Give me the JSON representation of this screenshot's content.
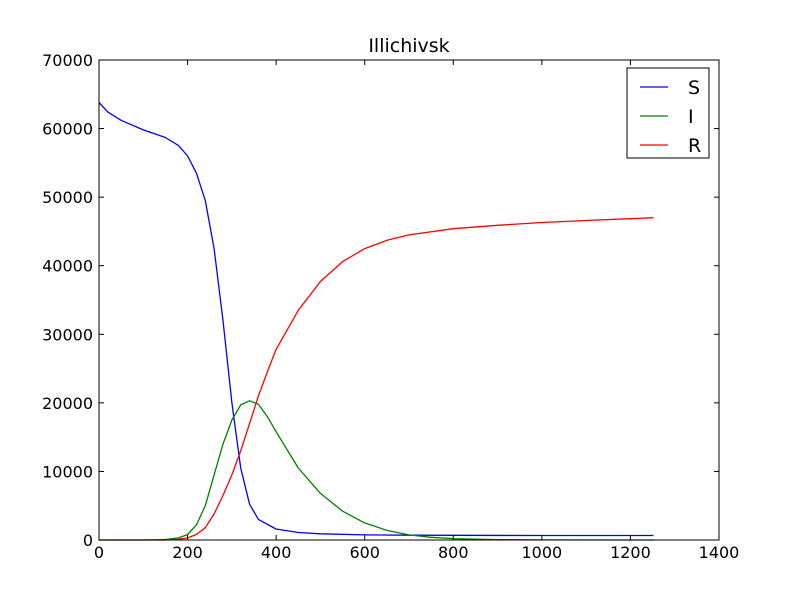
{
  "chart_data": {
    "type": "line",
    "title": "Illichivsk",
    "xlabel": "",
    "ylabel": "",
    "xlim": [
      0,
      1400
    ],
    "ylim": [
      0,
      70000
    ],
    "grid": false,
    "legend_position": "top-right",
    "xticks": [
      0,
      200,
      400,
      600,
      800,
      1000,
      1200,
      1400
    ],
    "yticks": [
      0,
      10000,
      20000,
      30000,
      40000,
      50000,
      60000,
      70000
    ],
    "series": [
      {
        "name": "S",
        "color": "#0000ff",
        "points": [
          [
            0,
            63800
          ],
          [
            20,
            62400
          ],
          [
            50,
            61200
          ],
          [
            100,
            59800
          ],
          [
            150,
            58700
          ],
          [
            180,
            57500
          ],
          [
            200,
            56000
          ],
          [
            220,
            53500
          ],
          [
            240,
            49500
          ],
          [
            260,
            42500
          ],
          [
            280,
            32000
          ],
          [
            300,
            20000
          ],
          [
            320,
            10500
          ],
          [
            340,
            5200
          ],
          [
            360,
            3000
          ],
          [
            400,
            1600
          ],
          [
            450,
            1100
          ],
          [
            500,
            900
          ],
          [
            600,
            750
          ],
          [
            700,
            700
          ],
          [
            800,
            680
          ],
          [
            1000,
            660
          ],
          [
            1252,
            650
          ]
        ]
      },
      {
        "name": "I",
        "color": "#008000",
        "points": [
          [
            0,
            0
          ],
          [
            100,
            0
          ],
          [
            150,
            80
          ],
          [
            180,
            300
          ],
          [
            200,
            800
          ],
          [
            220,
            2200
          ],
          [
            240,
            5000
          ],
          [
            260,
            9500
          ],
          [
            280,
            14000
          ],
          [
            300,
            17500
          ],
          [
            320,
            19700
          ],
          [
            340,
            20300
          ],
          [
            360,
            19800
          ],
          [
            380,
            18000
          ],
          [
            400,
            15800
          ],
          [
            450,
            10500
          ],
          [
            500,
            6800
          ],
          [
            550,
            4200
          ],
          [
            600,
            2500
          ],
          [
            650,
            1400
          ],
          [
            700,
            750
          ],
          [
            750,
            400
          ],
          [
            800,
            200
          ],
          [
            900,
            60
          ],
          [
            1000,
            15
          ],
          [
            1252,
            0
          ]
        ]
      },
      {
        "name": "R",
        "color": "#ff0000",
        "points": [
          [
            0,
            0
          ],
          [
            150,
            0
          ],
          [
            180,
            100
          ],
          [
            200,
            300
          ],
          [
            220,
            800
          ],
          [
            240,
            1800
          ],
          [
            260,
            3800
          ],
          [
            280,
            6500
          ],
          [
            300,
            9500
          ],
          [
            320,
            13000
          ],
          [
            340,
            17000
          ],
          [
            360,
            21000
          ],
          [
            380,
            24500
          ],
          [
            400,
            27800
          ],
          [
            450,
            33500
          ],
          [
            500,
            37700
          ],
          [
            550,
            40600
          ],
          [
            600,
            42500
          ],
          [
            650,
            43700
          ],
          [
            700,
            44500
          ],
          [
            800,
            45400
          ],
          [
            900,
            45900
          ],
          [
            1000,
            46300
          ],
          [
            1100,
            46600
          ],
          [
            1252,
            47000
          ]
        ]
      }
    ]
  }
}
